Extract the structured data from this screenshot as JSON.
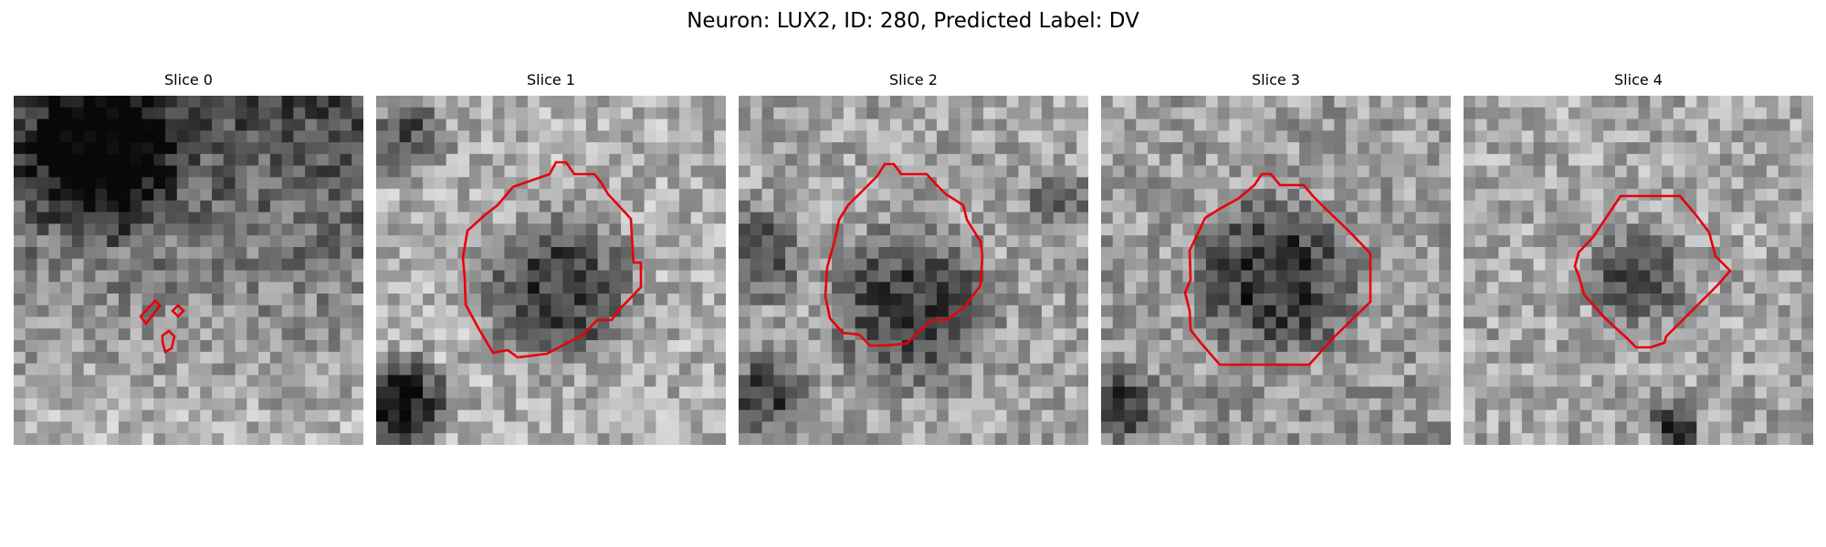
{
  "figure": {
    "title": "Neuron: LUX2, ID: 280, Predicted Label: DV"
  },
  "panels": [
    {
      "title": "Slice 0",
      "image": "grayscale-microscopy-patch",
      "contour_color": "#e8000b",
      "seed": 11,
      "bright_top": 70,
      "bright_bottom": 185,
      "dark_blobs": [
        [
          0.25,
          0.18,
          0.28,
          110
        ]
      ]
    },
    {
      "title": "Slice 1",
      "image": "grayscale-microscopy-patch",
      "contour_color": "#e8000b",
      "seed": 23,
      "bright_top": 175,
      "bright_bottom": 175,
      "dark_blobs": [
        [
          0.52,
          0.56,
          0.27,
          110
        ],
        [
          0.1,
          0.12,
          0.14,
          90
        ],
        [
          0.08,
          0.88,
          0.16,
          140
        ]
      ]
    },
    {
      "title": "Slice 2",
      "image": "grayscale-microscopy-patch",
      "contour_color": "#e8000b",
      "seed": 37,
      "bright_top": 165,
      "bright_bottom": 160,
      "dark_blobs": [
        [
          0.5,
          0.6,
          0.29,
          95
        ],
        [
          0.05,
          0.45,
          0.18,
          80
        ],
        [
          0.08,
          0.85,
          0.14,
          90
        ],
        [
          0.92,
          0.3,
          0.12,
          60
        ]
      ]
    },
    {
      "title": "Slice 3",
      "image": "grayscale-microscopy-patch",
      "contour_color": "#e8000b",
      "seed": 41,
      "bright_top": 160,
      "bright_bottom": 150,
      "dark_blobs": [
        [
          0.5,
          0.52,
          0.28,
          100
        ],
        [
          0.05,
          0.88,
          0.14,
          90
        ]
      ]
    },
    {
      "title": "Slice 4",
      "image": "grayscale-microscopy-patch",
      "contour_color": "#e8000b",
      "seed": 59,
      "bright_top": 170,
      "bright_bottom": 165,
      "dark_blobs": [
        [
          0.5,
          0.52,
          0.17,
          95
        ],
        [
          0.6,
          0.95,
          0.09,
          110
        ]
      ]
    }
  ]
}
